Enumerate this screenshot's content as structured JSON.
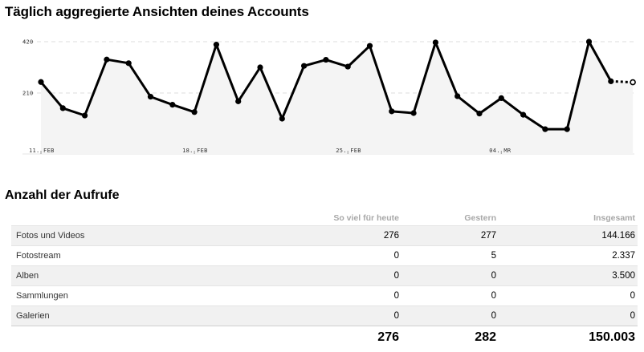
{
  "page": {
    "title": "Täglich aggregierte Ansichten deines Accounts",
    "table_title": "Anzahl der Aufrufe"
  },
  "chart_data": {
    "type": "line",
    "y_ticks": [
      "420",
      "210"
    ],
    "x_ticks": [
      "11. FEB",
      "18. FEB",
      "25. FEB",
      "04. MR"
    ],
    "ylim": [
      0,
      430
    ],
    "x_start_label": "11. FEB",
    "series": [
      {
        "values": [
          255,
          148,
          118,
          347,
          332,
          195,
          162,
          132,
          408,
          176,
          315,
          105,
          321,
          346,
          318,
          403,
          135,
          128,
          417,
          197,
          126,
          189,
          121,
          62,
          62,
          420,
          258,
          254
        ],
        "last_point_partial": true
      }
    ],
    "colors": {
      "line": "#000000",
      "area": "#f4f4f4",
      "grid": "#dddddd"
    }
  },
  "table": {
    "headers": [
      "",
      "So viel für heute",
      "Gestern",
      "Insgesamt"
    ],
    "rows": [
      [
        "Fotos und Videos",
        "276",
        "277",
        "144.166"
      ],
      [
        "Fotostream",
        "0",
        "5",
        "2.337"
      ],
      [
        "Alben",
        "0",
        "0",
        "3.500"
      ],
      [
        "Sammlungen",
        "0",
        "0",
        "0"
      ],
      [
        "Galerien",
        "0",
        "0",
        "0"
      ]
    ],
    "totals": [
      "",
      "276",
      "282",
      "150.003"
    ]
  }
}
